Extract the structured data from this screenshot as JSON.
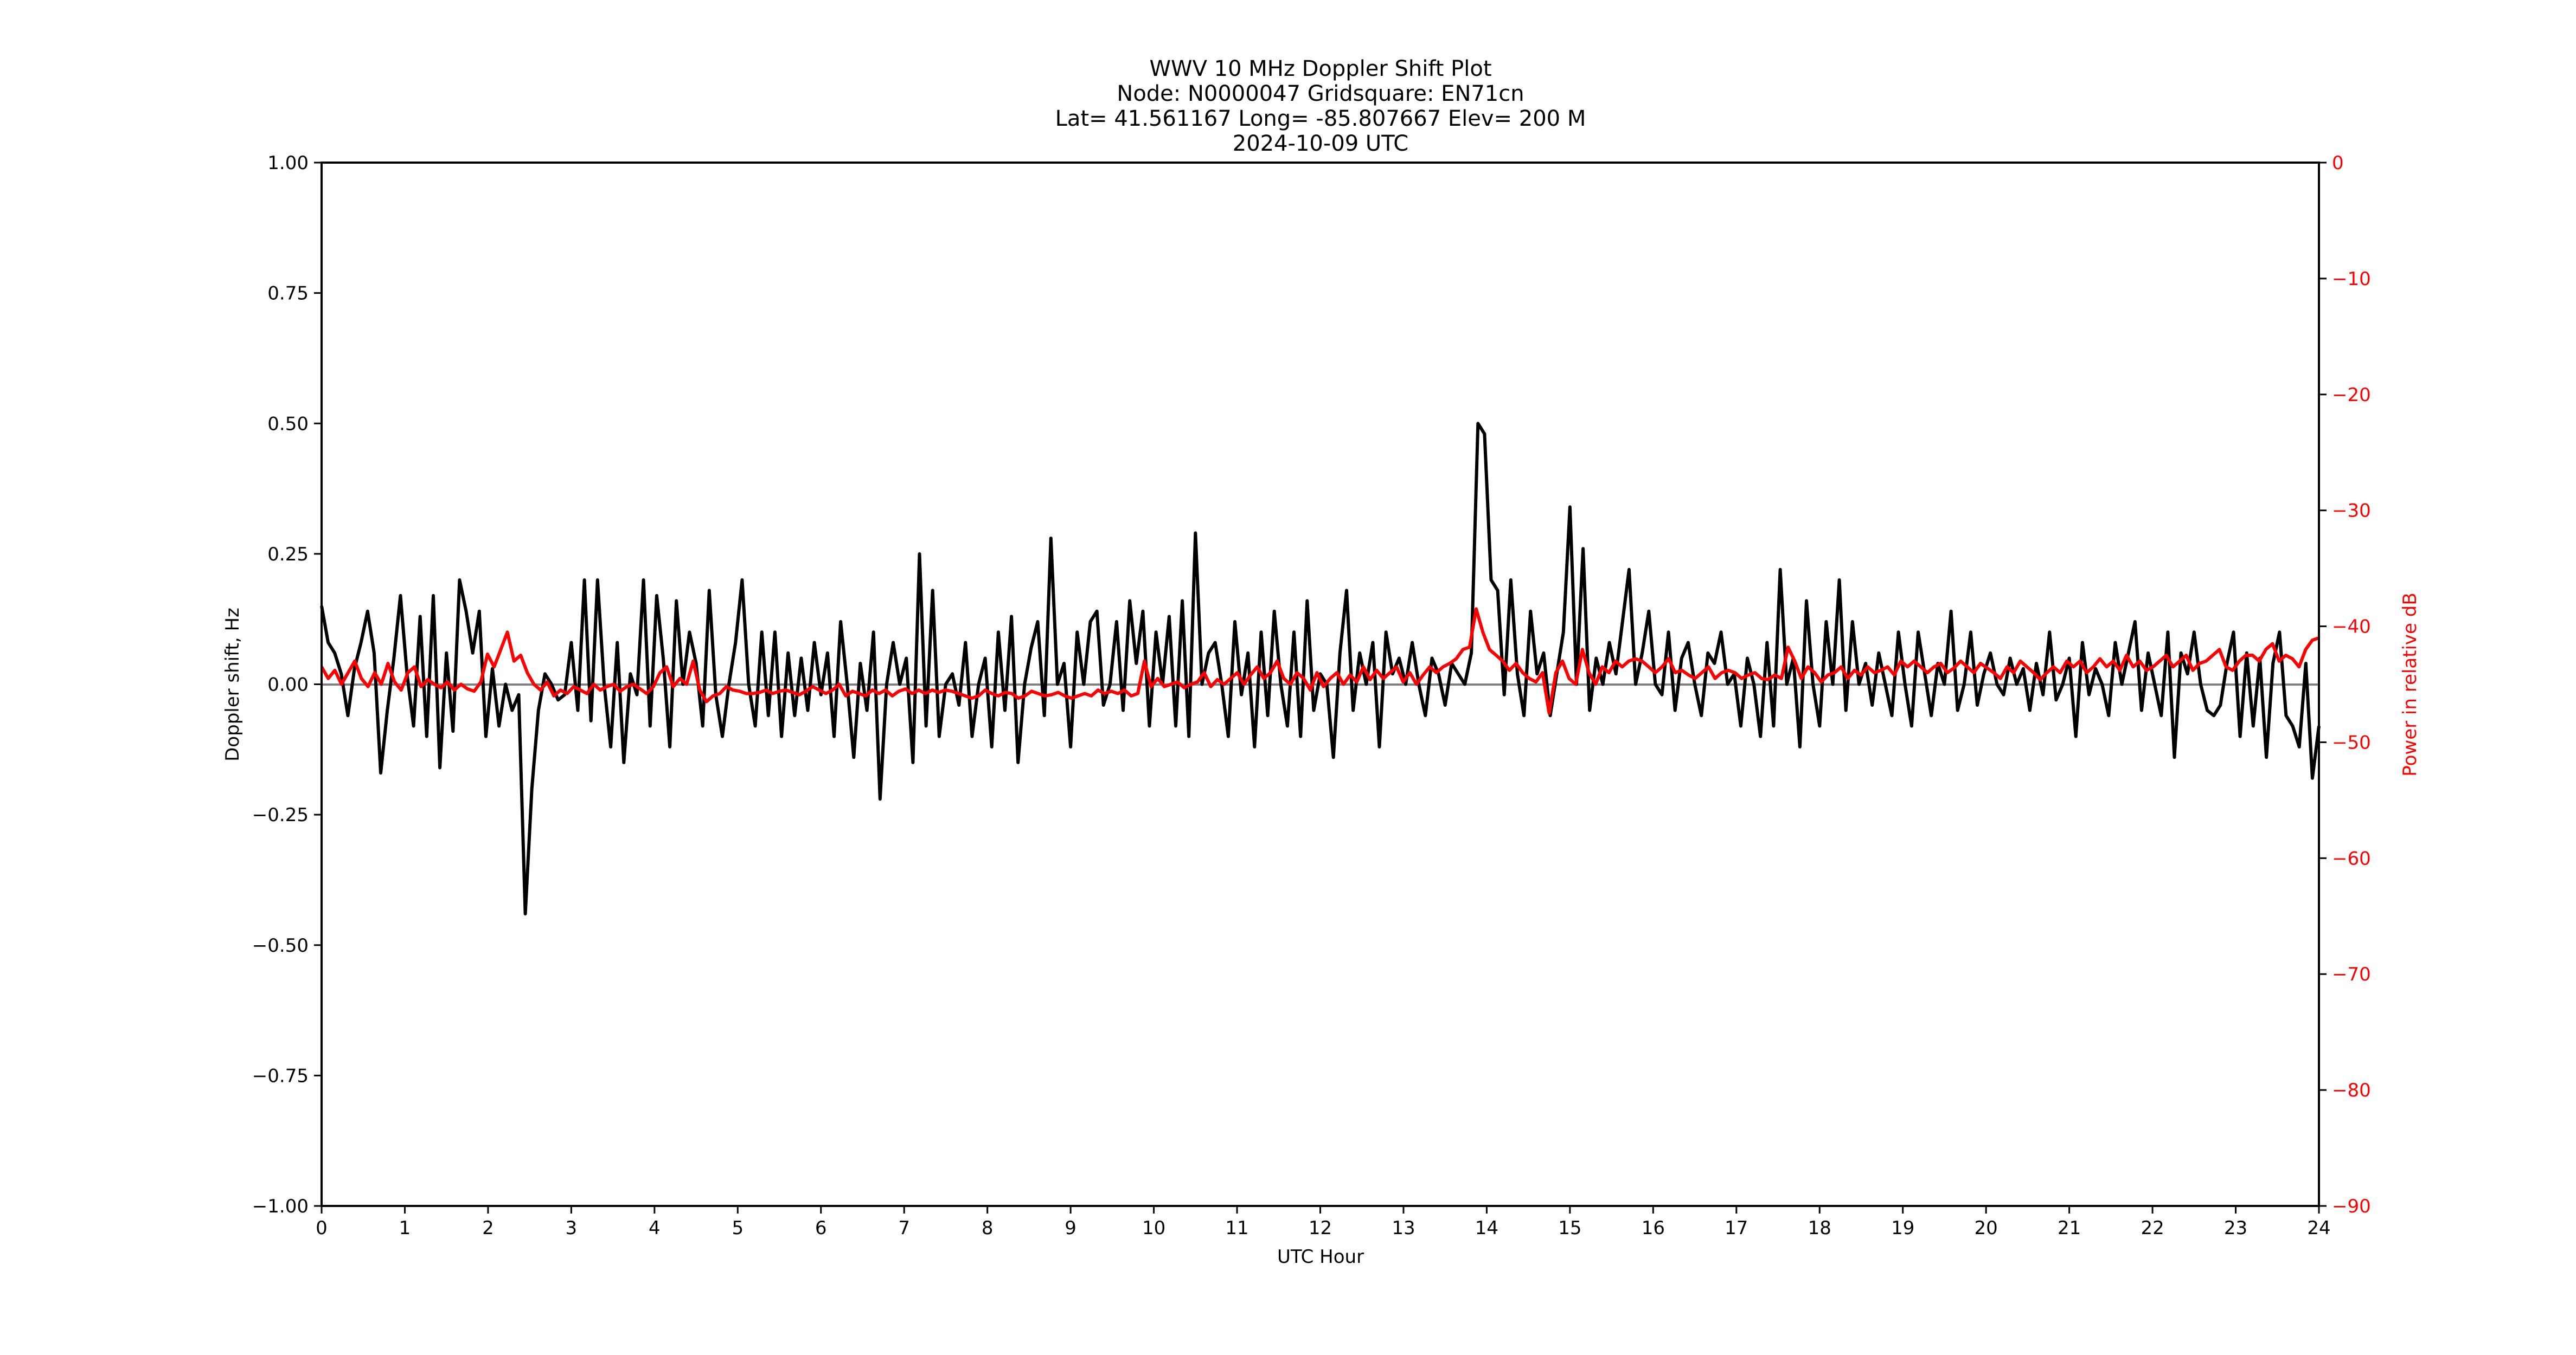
{
  "chart_data": {
    "type": "line",
    "title": "WWV 10 MHz Doppler Shift Plot",
    "subtitle_lines": [
      "Node:  N0000047     Gridsquare:  EN71cn",
      "Lat= 41.561167    Long= -85.807667    Elev= 200 M",
      "2024-10-09  UTC"
    ],
    "xlabel": "UTC Hour",
    "ylabel": "Doppler shift, Hz",
    "ylabel_right": "Power in relative dB",
    "xlim": [
      0,
      24
    ],
    "ylim": [
      -1.0,
      1.0
    ],
    "ylim_right": [
      -90,
      0
    ],
    "x_ticks": [
      "0",
      "1",
      "2",
      "3",
      "4",
      "5",
      "6",
      "7",
      "8",
      "9",
      "10",
      "11",
      "12",
      "13",
      "14",
      "15",
      "16",
      "17",
      "18",
      "19",
      "20",
      "21",
      "22",
      "23",
      "24"
    ],
    "y_ticks": [
      "1.00",
      "0.75",
      "0.50",
      "0.25",
      "0.00",
      "−0.25",
      "−0.50",
      "−0.75",
      "−1.00"
    ],
    "y_ticks_right": [
      "0",
      "−10",
      "−20",
      "−30",
      "−40",
      "−50",
      "−60",
      "−70",
      "−80",
      "−90"
    ],
    "grid": false,
    "legend": null,
    "reference_line": {
      "y": 0.0,
      "color": "#808080"
    },
    "series": [
      {
        "name": "Doppler shift",
        "axis": "left",
        "color": "#000000",
        "x_step": 0.1,
        "values": [
          0.15,
          0.08,
          0.06,
          0.02,
          -0.06,
          0.03,
          0.08,
          0.14,
          0.06,
          -0.17,
          -0.05,
          0.05,
          0.17,
          0.02,
          -0.08,
          0.13,
          -0.1,
          0.17,
          -0.16,
          0.06,
          -0.09,
          0.2,
          0.14,
          0.06,
          0.14,
          -0.1,
          0.03,
          -0.08,
          0.0,
          -0.05,
          -0.02,
          -0.44,
          -0.2,
          -0.05,
          0.02,
          0.0,
          -0.03,
          -0.02,
          0.08,
          -0.05,
          0.2,
          -0.07,
          0.2,
          0.0,
          -0.12,
          0.08,
          -0.15,
          0.02,
          -0.02,
          0.2,
          -0.08,
          0.17,
          0.05,
          -0.12,
          0.16,
          0.0,
          0.1,
          0.04,
          -0.08,
          0.18,
          -0.02,
          -0.1,
          0.0,
          0.08,
          0.2,
          0.0,
          -0.08,
          0.1,
          -0.06,
          0.1,
          -0.1,
          0.06,
          -0.06,
          0.05,
          -0.05,
          0.08,
          -0.02,
          0.06,
          -0.1,
          0.12,
          0.0,
          -0.14,
          0.04,
          -0.05,
          0.1,
          -0.22,
          0.0,
          0.08,
          0.0,
          0.05,
          -0.15,
          0.25,
          -0.08,
          0.18,
          -0.1,
          0.0,
          0.02,
          -0.04,
          0.08,
          -0.1,
          0.0,
          0.05,
          -0.12,
          0.1,
          -0.05,
          0.13,
          -0.15,
          0.0,
          0.07,
          0.12,
          -0.06,
          0.28,
          0.0,
          0.04,
          -0.12,
          0.1,
          0.0,
          0.12,
          0.14,
          -0.04,
          0.0,
          0.12,
          -0.05,
          0.16,
          0.04,
          0.14,
          -0.08,
          0.1,
          0.0,
          0.13,
          -0.08,
          0.16,
          -0.1,
          0.29,
          0.0,
          0.06,
          0.08,
          0.0,
          -0.1,
          0.12,
          -0.02,
          0.06,
          -0.12,
          0.1,
          -0.06,
          0.14,
          0.0,
          -0.08,
          0.1,
          -0.1,
          0.16,
          -0.05,
          0.02,
          0.0,
          -0.14,
          0.06,
          0.18,
          -0.05,
          0.06,
          0.0,
          0.08,
          -0.12,
          0.1,
          0.02,
          0.05,
          0.0,
          0.08,
          0.0,
          -0.06,
          0.05,
          0.02,
          -0.04,
          0.04,
          0.02,
          0.0,
          0.06,
          0.5,
          0.48,
          0.2,
          0.18,
          -0.02,
          0.2,
          0.02,
          -0.06,
          0.14,
          0.02,
          0.06,
          -0.06,
          0.02,
          0.1,
          0.34,
          0.0,
          0.26,
          -0.05,
          0.05,
          0.0,
          0.08,
          0.02,
          0.12,
          0.22,
          0.0,
          0.06,
          0.14,
          0.0,
          -0.02,
          0.1,
          -0.05,
          0.05,
          0.08,
          0.0,
          -0.06,
          0.06,
          0.04,
          0.1,
          0.0,
          0.02,
          -0.08,
          0.05,
          0.0,
          -0.1,
          0.08,
          -0.08,
          0.22,
          0.0,
          0.05,
          -0.12,
          0.16,
          0.0,
          -0.08,
          0.12,
          0.0,
          0.2,
          -0.05,
          0.12,
          0.0,
          0.04,
          -0.04,
          0.06,
          0.0,
          -0.06,
          0.1,
          0.0,
          -0.08,
          0.1,
          0.02,
          -0.06,
          0.04,
          0.0,
          0.14,
          -0.05,
          0.0,
          0.1,
          -0.04,
          0.02,
          0.06,
          0.0,
          -0.02,
          0.05,
          0.0,
          0.03,
          -0.05,
          0.04,
          -0.02,
          0.1,
          -0.03,
          0.0,
          0.05,
          -0.1,
          0.08,
          -0.02,
          0.03,
          0.0,
          -0.06,
          0.08,
          0.0,
          0.06,
          0.12,
          -0.05,
          0.06,
          0.0,
          -0.06,
          0.1,
          -0.14,
          0.06,
          0.02,
          0.1,
          0.0,
          -0.05,
          -0.06,
          -0.04,
          0.04,
          0.1,
          -0.1,
          0.06,
          -0.08,
          0.05,
          -0.14,
          0.04,
          0.1,
          -0.06,
          -0.08,
          -0.12,
          0.04,
          -0.18,
          -0.08
        ]
      },
      {
        "name": "Power",
        "axis": "right",
        "color": "#ff0000",
        "x_step": 0.1,
        "values": [
          -43.5,
          -44.5,
          -43.8,
          -45.0,
          -44.0,
          -43.0,
          -44.5,
          -45.2,
          -44.0,
          -45.0,
          -43.2,
          -44.8,
          -45.5,
          -44.0,
          -43.5,
          -45.2,
          -44.6,
          -45.0,
          -45.3,
          -44.8,
          -45.5,
          -45.0,
          -45.4,
          -45.6,
          -44.8,
          -42.4,
          -43.5,
          -42.0,
          -40.5,
          -43.0,
          -42.5,
          -44.0,
          -45.0,
          -45.5,
          -44.8,
          -46.0,
          -45.5,
          -45.8,
          -45.2,
          -45.5,
          -45.8,
          -45.0,
          -45.5,
          -45.2,
          -45.0,
          -45.6,
          -45.2,
          -45.0,
          -45.4,
          -45.8,
          -45.2,
          -44.0,
          -43.5,
          -45.2,
          -44.5,
          -45.0,
          -43.0,
          -45.5,
          -46.5,
          -46.0,
          -45.8,
          -45.2,
          -45.5,
          -45.6,
          -45.8,
          -45.8,
          -45.7,
          -45.5,
          -45.8,
          -45.6,
          -45.5,
          -45.7,
          -45.9,
          -45.6,
          -45.2,
          -45.5,
          -45.8,
          -45.5,
          -45.0,
          -46.0,
          -45.6,
          -45.8,
          -46.0,
          -45.5,
          -45.8,
          -45.5,
          -46.0,
          -45.6,
          -45.4,
          -45.8,
          -45.5,
          -45.8,
          -45.5,
          -45.7,
          -45.5,
          -45.6,
          -45.8,
          -46.0,
          -46.2,
          -46.0,
          -45.5,
          -45.8,
          -46.0,
          -45.7,
          -45.8,
          -46.2,
          -46.0,
          -45.6,
          -45.8,
          -46.0,
          -45.9,
          -45.7,
          -46.0,
          -46.2,
          -46.0,
          -45.8,
          -46.0,
          -45.5,
          -45.8,
          -45.6,
          -45.8,
          -45.5,
          -46.0,
          -45.8,
          -43.0,
          -45.2,
          -44.5,
          -45.2,
          -45.0,
          -44.8,
          -45.3,
          -45.0,
          -44.8,
          -44.0,
          -45.2,
          -44.6,
          -45.0,
          -44.5,
          -44.0,
          -45.0,
          -44.2,
          -43.5,
          -44.5,
          -44.0,
          -43.0,
          -44.5,
          -45.0,
          -44.0,
          -44.5,
          -45.5,
          -44.0,
          -45.2,
          -44.5,
          -44.0,
          -45.0,
          -44.2,
          -44.8,
          -43.5,
          -44.6,
          -43.8,
          -44.5,
          -44.0,
          -43.5,
          -44.8,
          -44.0,
          -45.0,
          -44.2,
          -43.5,
          -44.0,
          -43.5,
          -43.2,
          -42.8,
          -42.0,
          -41.8,
          -38.5,
          -40.5,
          -42.0,
          -42.5,
          -43.0,
          -43.8,
          -43.2,
          -44.0,
          -44.5,
          -44.8,
          -44.0,
          -47.5,
          -44.0,
          -43.0,
          -44.5,
          -45.0,
          -42.0,
          -44.0,
          -45.0,
          -43.5,
          -44.0,
          -43.0,
          -43.5,
          -43.0,
          -42.8,
          -43.0,
          -43.5,
          -44.0,
          -43.5,
          -42.8,
          -44.0,
          -43.8,
          -44.2,
          -44.5,
          -44.0,
          -43.5,
          -44.5,
          -44.0,
          -43.8,
          -44.0,
          -44.5,
          -44.2,
          -44.0,
          -44.5,
          -44.6,
          -44.2,
          -44.5,
          -41.8,
          -43.0,
          -44.5,
          -43.5,
          -44.0,
          -44.8,
          -44.2,
          -44.0,
          -43.5,
          -44.5,
          -43.8,
          -44.2,
          -43.5,
          -44.0,
          -43.8,
          -43.5,
          -44.2,
          -43.0,
          -43.5,
          -43.0,
          -43.5,
          -44.0,
          -43.5,
          -43.2,
          -44.0,
          -43.6,
          -43.0,
          -43.5,
          -44.0,
          -43.2,
          -43.6,
          -44.0,
          -44.5,
          -43.5,
          -44.0,
          -43.0,
          -43.5,
          -44.0,
          -44.6,
          -44.0,
          -43.5,
          -44.0,
          -43.0,
          -43.5,
          -43.0,
          -44.0,
          -43.5,
          -42.8,
          -43.5,
          -43.0,
          -43.8,
          -42.5,
          -43.5,
          -43.0,
          -43.8,
          -43.5,
          -43.0,
          -42.5,
          -43.5,
          -43.0,
          -42.5,
          -43.8,
          -43.2,
          -43.0,
          -42.5,
          -42.0,
          -43.5,
          -43.8,
          -43.0,
          -42.5,
          -42.5,
          -43.0,
          -42.0,
          -41.5,
          -43.0,
          -42.5,
          -42.8,
          -43.5,
          -42.0,
          -41.2,
          -41.0
        ]
      }
    ]
  }
}
